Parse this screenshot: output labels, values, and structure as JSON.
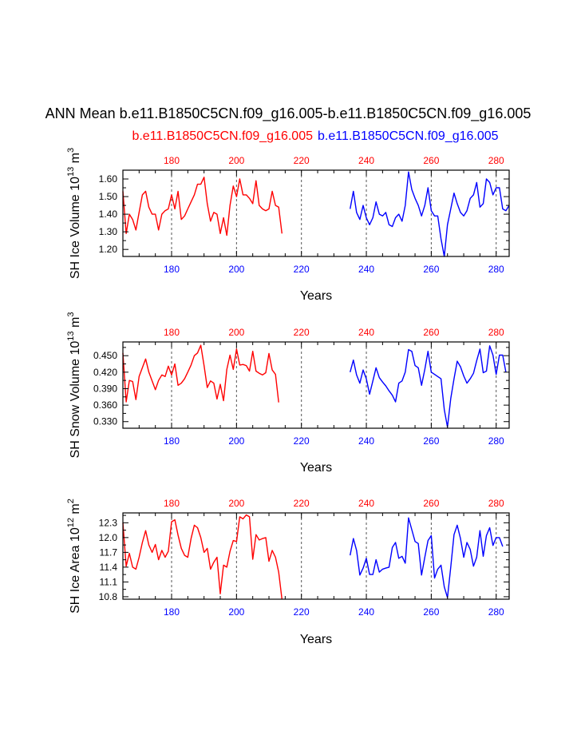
{
  "title": "ANN Mean b.e11.B1850C5CN.f09_g16.005-b.e11.B1850C5CN.f09_g16.005",
  "legend": {
    "left_label": "b.e11.B1850C5CN.f09_g16.005",
    "right_label": "b.e11.B1850C5CN.f09_g16.005",
    "left_color": "#ff0000",
    "right_color": "#0000ff"
  },
  "chart_data": [
    {
      "type": "line",
      "ylabel_main": "SH Ice Volume 10",
      "ylabel_exp": "13",
      "ylabel_unit": " m",
      "ylabel_unit_exp": "3",
      "xlabel": "Years",
      "xlim": [
        165,
        284
      ],
      "ylim": [
        1.16,
        1.65
      ],
      "yticks": [
        "1.20",
        "1.30",
        "1.40",
        "1.50",
        "1.60"
      ],
      "xticks": [
        "180",
        "200",
        "220",
        "240",
        "260",
        "280"
      ],
      "series": [
        {
          "name": "b.e11.B1850C5CN.f09_g16.005",
          "color": "#ff0000",
          "x_start": 165,
          "values": [
            1.53,
            1.29,
            1.4,
            1.37,
            1.31,
            1.41,
            1.51,
            1.53,
            1.44,
            1.4,
            1.4,
            1.31,
            1.4,
            1.42,
            1.43,
            1.51,
            1.43,
            1.53,
            1.37,
            1.39,
            1.43,
            1.47,
            1.51,
            1.57,
            1.57,
            1.61,
            1.46,
            1.36,
            1.41,
            1.4,
            1.29,
            1.38,
            1.28,
            1.45,
            1.56,
            1.5,
            1.6,
            1.51,
            1.51,
            1.49,
            1.46,
            1.59,
            1.45,
            1.43,
            1.42,
            1.43,
            1.53,
            1.45,
            1.44,
            1.29
          ]
        },
        {
          "name": "b.e11.B1850C5CN.f09_g16.005",
          "color": "#0000ff",
          "x_start": 235,
          "values": [
            1.43,
            1.53,
            1.41,
            1.37,
            1.45,
            1.38,
            1.34,
            1.38,
            1.47,
            1.4,
            1.39,
            1.41,
            1.34,
            1.33,
            1.38,
            1.4,
            1.36,
            1.45,
            1.64,
            1.54,
            1.49,
            1.45,
            1.39,
            1.45,
            1.55,
            1.42,
            1.39,
            1.39,
            1.26,
            1.16,
            1.34,
            1.43,
            1.52,
            1.46,
            1.41,
            1.39,
            1.42,
            1.49,
            1.51,
            1.58,
            1.44,
            1.46,
            1.6,
            1.58,
            1.51,
            1.55,
            1.55,
            1.43,
            1.42,
            1.45
          ]
        }
      ]
    },
    {
      "type": "line",
      "ylabel_main": "SH Snow Volume 10",
      "ylabel_exp": "13",
      "ylabel_unit": " m",
      "ylabel_unit_exp": "3",
      "xlabel": "Years",
      "xlim": [
        165,
        284
      ],
      "ylim": [
        0.318,
        0.475
      ],
      "yticks": [
        "0.330",
        "0.360",
        "0.390",
        "0.420",
        "0.450"
      ],
      "xticks": [
        "180",
        "200",
        "220",
        "240",
        "260",
        "280"
      ],
      "series": [
        {
          "name": "b.e11.B1850C5CN.f09_g16.005",
          "color": "#ff0000",
          "x_start": 165,
          "values": [
            0.455,
            0.366,
            0.405,
            0.403,
            0.37,
            0.412,
            0.428,
            0.444,
            0.42,
            0.404,
            0.388,
            0.405,
            0.415,
            0.412,
            0.431,
            0.415,
            0.435,
            0.396,
            0.4,
            0.408,
            0.42,
            0.433,
            0.45,
            0.455,
            0.469,
            0.432,
            0.392,
            0.404,
            0.4,
            0.371,
            0.398,
            0.368,
            0.425,
            0.451,
            0.425,
            0.462,
            0.433,
            0.434,
            0.432,
            0.422,
            0.458,
            0.422,
            0.418,
            0.415,
            0.419,
            0.454,
            0.424,
            0.416,
            0.365
          ]
        },
        {
          "name": "b.e11.B1850C5CN.f09_g16.005",
          "color": "#0000ff",
          "x_start": 235,
          "values": [
            0.42,
            0.442,
            0.415,
            0.4,
            0.424,
            0.408,
            0.38,
            0.404,
            0.428,
            0.41,
            0.402,
            0.395,
            0.386,
            0.378,
            0.366,
            0.4,
            0.404,
            0.42,
            0.461,
            0.458,
            0.432,
            0.428,
            0.396,
            0.425,
            0.458,
            0.42,
            0.416,
            0.412,
            0.408,
            0.352,
            0.32,
            0.372,
            0.408,
            0.44,
            0.43,
            0.413,
            0.4,
            0.408,
            0.418,
            0.441,
            0.462,
            0.419,
            0.422,
            0.468,
            0.451,
            0.416,
            0.451,
            0.451,
            0.42
          ]
        }
      ]
    },
    {
      "type": "line",
      "ylabel_main": "SH Ice Area 10",
      "ylabel_exp": "12",
      "ylabel_unit": " m",
      "ylabel_unit_exp": "2",
      "xlabel": "Years",
      "xlim": [
        165,
        284
      ],
      "ylim": [
        10.75,
        12.5
      ],
      "yticks": [
        "10.8",
        "11.1",
        "11.4",
        "11.7",
        "12.0",
        "12.3"
      ],
      "xticks": [
        "180",
        "200",
        "220",
        "240",
        "260",
        "280"
      ],
      "series": [
        {
          "name": "b.e11.B1850C5CN.f09_g16.005",
          "color": "#ff0000",
          "x_start": 165,
          "values": [
            12.3,
            11.42,
            11.68,
            11.4,
            11.36,
            11.6,
            11.9,
            12.14,
            11.85,
            11.7,
            11.86,
            11.55,
            11.74,
            11.6,
            11.72,
            12.32,
            12.36,
            12.05,
            11.78,
            11.64,
            11.6,
            11.98,
            12.25,
            12.2,
            12.0,
            11.7,
            11.78,
            11.36,
            11.5,
            11.6,
            10.86,
            11.44,
            11.4,
            11.72,
            11.94,
            11.92,
            12.42,
            12.38,
            12.46,
            12.42,
            11.56,
            12.06,
            11.95,
            11.98,
            12.0,
            11.52,
            11.74,
            11.6,
            11.3,
            10.75
          ]
        },
        {
          "name": "b.e11.B1850C5CN.f09_g16.005",
          "color": "#0000ff",
          "x_start": 235,
          "values": [
            11.64,
            11.98,
            11.74,
            11.24,
            11.38,
            11.58,
            11.25,
            11.25,
            11.55,
            11.3,
            11.36,
            11.38,
            11.4,
            11.8,
            11.9,
            11.58,
            11.62,
            11.48,
            12.4,
            12.16,
            11.92,
            11.88,
            11.24,
            11.6,
            11.94,
            12.04,
            11.18,
            11.36,
            11.44,
            11.0,
            10.78,
            11.4,
            12.06,
            12.25,
            11.98,
            11.6,
            11.9,
            11.76,
            11.42,
            11.6,
            12.14,
            11.62,
            12.04,
            12.2,
            11.84,
            12.0,
            12.0,
            11.82
          ]
        }
      ]
    }
  ]
}
